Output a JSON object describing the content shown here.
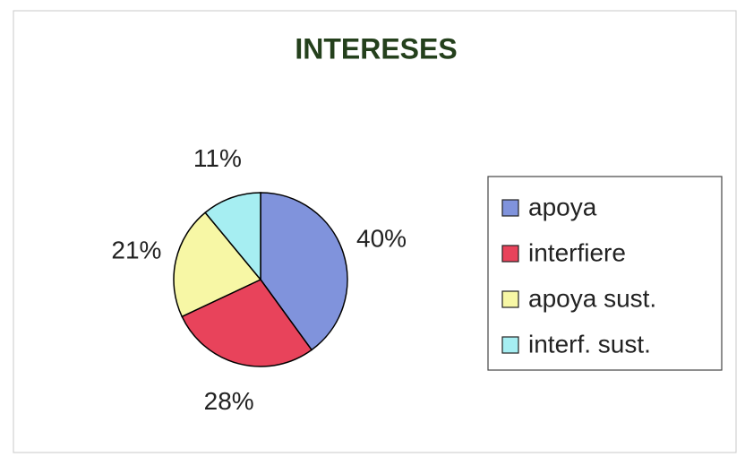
{
  "chart_data": {
    "type": "pie",
    "title": "INTERESES",
    "categories": [
      "apoya",
      "interfiere",
      "apoya sust.",
      "interf. sust."
    ],
    "values": [
      40,
      28,
      21,
      11
    ],
    "value_labels": [
      "40%",
      "28%",
      "21%",
      "11%"
    ],
    "colors": [
      "#8093dc",
      "#e8435b",
      "#f7f7a5",
      "#a6eef2"
    ],
    "legend": "right"
  }
}
